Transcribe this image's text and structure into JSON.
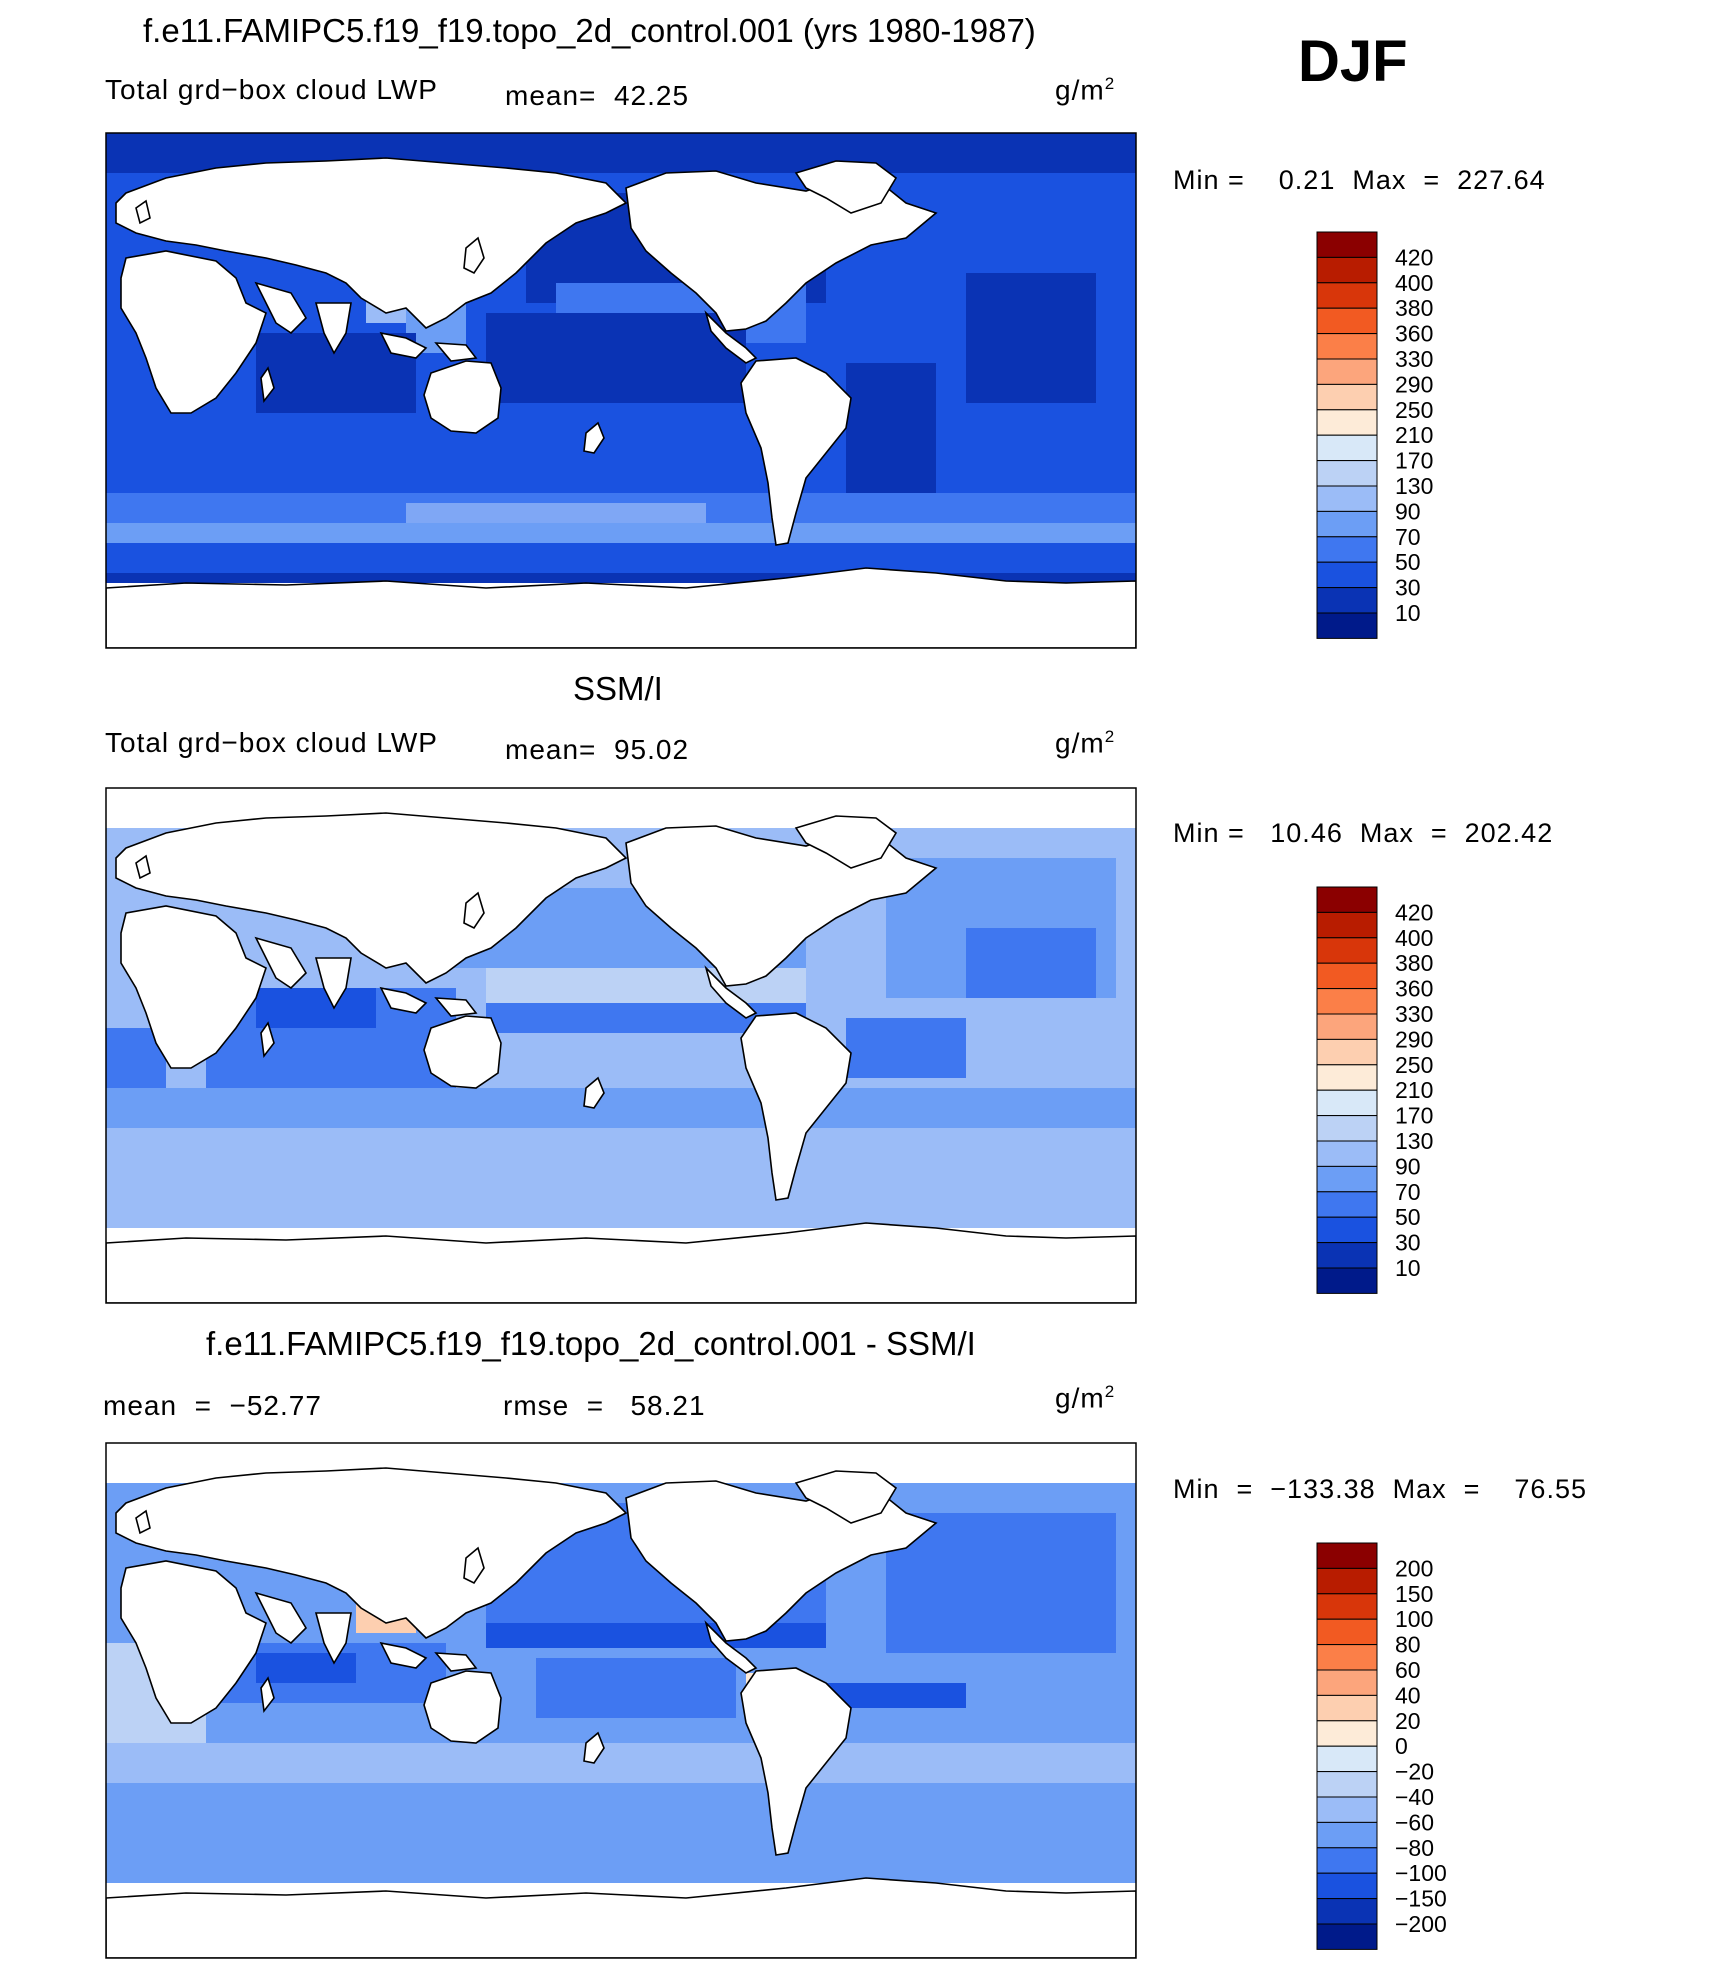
{
  "season": "DJF",
  "panels": [
    {
      "title": "f.e11.FAMIPC5.f19_f19.topo_2d_control.001 (yrs 1980-1987)",
      "variable": "Total grd−box cloud LWP",
      "stat1": "mean=  42.25",
      "stat2": "",
      "units": "g/m",
      "units_sup": "2",
      "range": "Min =    0.21  Max  =  227.64",
      "colorbar": {
        "labels": [
          "420",
          "400",
          "380",
          "360",
          "330",
          "290",
          "250",
          "210",
          "170",
          "130",
          "90",
          "70",
          "50",
          "30",
          "10"
        ],
        "colors": [
          "#8b0000",
          "#b81c00",
          "#d8360a",
          "#f25a22",
          "#fb7f48",
          "#fca57c",
          "#fdcfb0",
          "#fdebd8",
          "#d8e8f8",
          "#bcd2f5",
          "#9bbcf7",
          "#6c9ef5",
          "#3f77f0",
          "#1a52e0",
          "#0a33b4",
          "#001a8a"
        ]
      }
    },
    {
      "title": "SSM/I",
      "variable": "Total grd−box cloud LWP",
      "stat1": "mean=  95.02",
      "stat2": "",
      "units": "g/m",
      "units_sup": "2",
      "range": "Min =   10.46  Max  =  202.42",
      "colorbar": {
        "labels": [
          "420",
          "400",
          "380",
          "360",
          "330",
          "290",
          "250",
          "210",
          "170",
          "130",
          "90",
          "70",
          "50",
          "30",
          "10"
        ],
        "colors": [
          "#8b0000",
          "#b81c00",
          "#d8360a",
          "#f25a22",
          "#fb7f48",
          "#fca57c",
          "#fdcfb0",
          "#fdebd8",
          "#d8e8f8",
          "#bcd2f5",
          "#9bbcf7",
          "#6c9ef5",
          "#3f77f0",
          "#1a52e0",
          "#0a33b4",
          "#001a8a"
        ]
      }
    },
    {
      "title": "f.e11.FAMIPC5.f19_f19.topo_2d_control.001 - SSM/I",
      "variable": "",
      "stat1": "mean  =  −52.77",
      "stat2": "rmse  =   58.21",
      "units": "g/m",
      "units_sup": "2",
      "range": "Min  =  −133.38  Max  =    76.55",
      "colorbar": {
        "labels": [
          "200",
          "150",
          "100",
          "80",
          "60",
          "40",
          "20",
          "0",
          "−20",
          "−40",
          "−60",
          "−80",
          "−100",
          "−150",
          "−200"
        ],
        "colors": [
          "#8b0000",
          "#b81c00",
          "#d8360a",
          "#f25a22",
          "#fb7f48",
          "#fca57c",
          "#fdcfb0",
          "#fdebd8",
          "#d8e8f8",
          "#bcd2f5",
          "#9bbcf7",
          "#6c9ef5",
          "#3f77f0",
          "#1a52e0",
          "#0a33b4",
          "#001a8a"
        ]
      }
    }
  ],
  "palette": {
    "ocean_deep": "#0a33b4",
    "ocean_mid": "#1a52e0",
    "ocean_mid2": "#3f77f0",
    "ocean_light": "#6c9ef5",
    "ocean_pale": "#9bbcf7",
    "ocean_paler": "#bcd2f5",
    "ocean_faint": "#d8e8f8",
    "warm_faint": "#fdebd8",
    "warm_pale": "#fdcfb0",
    "land": "#ffffff",
    "coast": "#000000"
  }
}
